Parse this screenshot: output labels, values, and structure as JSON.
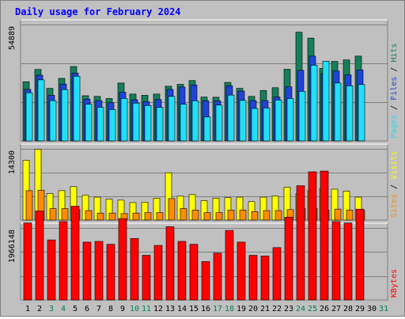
{
  "window": {
    "title": "Daily usage for February 2024"
  },
  "chart_data": [
    {
      "type": "bar",
      "panel": "pages-files-hits",
      "ytick": "54889",
      "ymax": 54889,
      "right_label": {
        "pages": "Pages",
        "files": "Files",
        "hits": "Hits",
        "sep": " / "
      },
      "colors": {
        "hits": "#157f5a",
        "files": "#1f44d8",
        "pages": "#20e0f8"
      },
      "categories": [
        "1",
        "2",
        "3",
        "4",
        "5",
        "6",
        "7",
        "8",
        "9",
        "10",
        "11",
        "12",
        "13",
        "14",
        "15",
        "16",
        "17",
        "18",
        "19",
        "20",
        "21",
        "22",
        "23",
        "24",
        "25",
        "26",
        "27",
        "28",
        "29",
        "30",
        "31"
      ],
      "series": [
        {
          "name": "Hits",
          "values": [
            27900,
            33700,
            24800,
            29500,
            35100,
            21300,
            21000,
            20000,
            27300,
            22100,
            21500,
            22100,
            25800,
            26700,
            28500,
            20700,
            20600,
            27600,
            24800,
            21000,
            23800,
            25100,
            33800,
            51300,
            48500,
            34200,
            37500,
            38200,
            40000,
            null,
            null
          ]
        },
        {
          "name": "Files",
          "values": [
            24300,
            31000,
            21500,
            26800,
            32000,
            19700,
            19000,
            18000,
            23000,
            19400,
            18500,
            19500,
            24300,
            25400,
            26400,
            18900,
            18900,
            26000,
            23500,
            19000,
            19000,
            20700,
            25500,
            33300,
            40000,
            31800,
            33000,
            31200,
            33500,
            null,
            null
          ]
        },
        {
          "name": "Pages",
          "values": [
            22700,
            28800,
            19000,
            24200,
            30500,
            17300,
            15800,
            14800,
            20000,
            17800,
            16700,
            15800,
            21000,
            17300,
            18900,
            11300,
            16900,
            21600,
            19100,
            15300,
            15500,
            19300,
            20000,
            23400,
            35700,
            37600,
            27300,
            26000,
            26600,
            null,
            null
          ]
        }
      ]
    },
    {
      "type": "bar",
      "panel": "sites-visits",
      "ytick": "14300",
      "ymax": 14300,
      "right_label": {
        "sites": "Sites",
        "visits": "Visits",
        "sep": " / "
      },
      "colors": {
        "visits": "#ffff00",
        "sites": "#ff8c00"
      },
      "categories": [
        "1",
        "2",
        "3",
        "4",
        "5",
        "6",
        "7",
        "8",
        "9",
        "10",
        "11",
        "12",
        "13",
        "14",
        "15",
        "16",
        "17",
        "18",
        "19",
        "20",
        "21",
        "22",
        "23",
        "24",
        "25",
        "26",
        "27",
        "28",
        "29",
        "30",
        "31"
      ],
      "series": [
        {
          "name": "Visits",
          "values": [
            12000,
            14200,
            5300,
            5900,
            6700,
            5000,
            4600,
            4200,
            4000,
            3500,
            3600,
            4400,
            9500,
            4800,
            5100,
            3900,
            4400,
            4500,
            4600,
            3700,
            4600,
            4800,
            6600,
            5300,
            5900,
            6300,
            6200,
            5800,
            4600,
            null,
            null
          ]
        },
        {
          "name": "Sites",
          "values": [
            5900,
            6000,
            2300,
            2300,
            2100,
            1900,
            1400,
            1400,
            1300,
            1400,
            1500,
            1500,
            4300,
            2300,
            2000,
            1500,
            1500,
            2000,
            2000,
            1700,
            1900,
            1900,
            2100,
            2300,
            2300,
            2000,
            2200,
            2000,
            1900,
            null,
            null
          ]
        }
      ]
    },
    {
      "type": "bar",
      "panel": "kbytes",
      "ytick": "1966148",
      "ymax": 1966148,
      "right_label": {
        "kbytes": "KBytes"
      },
      "colors": {
        "kbytes": "#ff0000"
      },
      "categories": [
        "1",
        "2",
        "3",
        "4",
        "5",
        "6",
        "7",
        "8",
        "9",
        "10",
        "11",
        "12",
        "13",
        "14",
        "15",
        "16",
        "17",
        "18",
        "19",
        "20",
        "21",
        "22",
        "23",
        "24",
        "25",
        "26",
        "27",
        "28",
        "29",
        "30",
        "31"
      ],
      "series": [
        {
          "name": "KBytes",
          "values": [
            2100000,
            2430000,
            1640000,
            2140000,
            2560000,
            1580000,
            1600000,
            1520000,
            2220000,
            1680000,
            1220000,
            1490000,
            2000000,
            1600000,
            1520000,
            1050000,
            1280000,
            1900000,
            1580000,
            1220000,
            1200000,
            1430000,
            2260000,
            3120000,
            3500000,
            3520000,
            2140000,
            2100000,
            2480000,
            null,
            null
          ]
        }
      ]
    }
  ],
  "x_axis": {
    "labels": [
      "1",
      "2",
      "3",
      "4",
      "5",
      "6",
      "7",
      "8",
      "9",
      "10",
      "11",
      "12",
      "13",
      "14",
      "15",
      "16",
      "17",
      "18",
      "19",
      "20",
      "21",
      "22",
      "23",
      "24",
      "25",
      "26",
      "27",
      "28",
      "29",
      "30",
      "31"
    ],
    "weekend_days": [
      3,
      4,
      10,
      11,
      17,
      18,
      24,
      25,
      31
    ],
    "colors": {
      "weekday": "#000000",
      "weekend": "#00805c"
    }
  }
}
